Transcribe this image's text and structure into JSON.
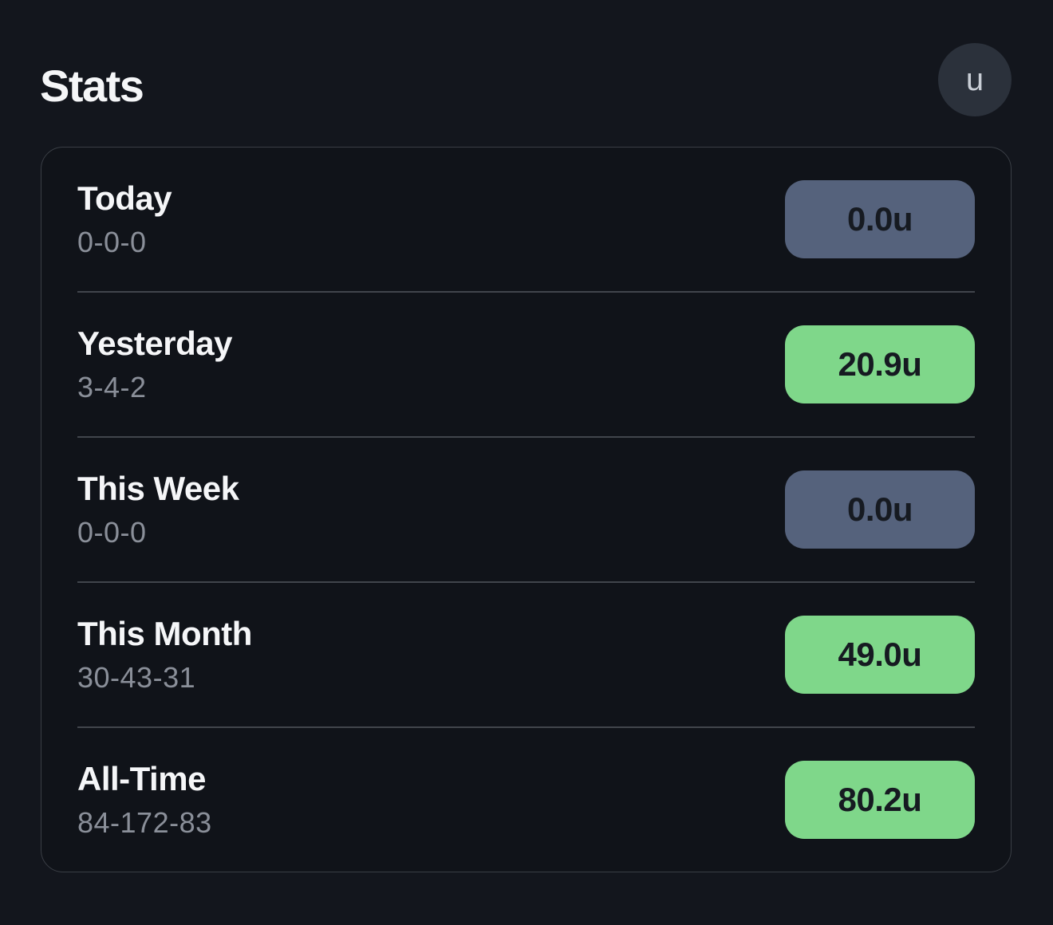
{
  "header": {
    "title": "Stats",
    "avatar_label": "u"
  },
  "stats": {
    "rows": [
      {
        "period": "Today",
        "record": "0-0-0",
        "units": "0.0u",
        "state": "neutral"
      },
      {
        "period": "Yesterday",
        "record": "3-4-2",
        "units": "20.9u",
        "state": "positive"
      },
      {
        "period": "This Week",
        "record": "0-0-0",
        "units": "0.0u",
        "state": "neutral"
      },
      {
        "period": "This Month",
        "record": "30-43-31",
        "units": "49.0u",
        "state": "positive"
      },
      {
        "period": "All-Time",
        "record": "84-172-83",
        "units": "80.2u",
        "state": "positive"
      }
    ]
  },
  "colors": {
    "background": "#13161d",
    "card_background": "#101319",
    "card_border": "#3a3e45",
    "divider": "#41454c",
    "title_text": "#f5f6f8",
    "record_text": "#8a8f99",
    "badge_text": "#161a21",
    "badge_positive": "#7fd78a",
    "badge_neutral": "#55627c",
    "avatar_background": "#2b313b",
    "avatar_text": "#c9ced6"
  }
}
